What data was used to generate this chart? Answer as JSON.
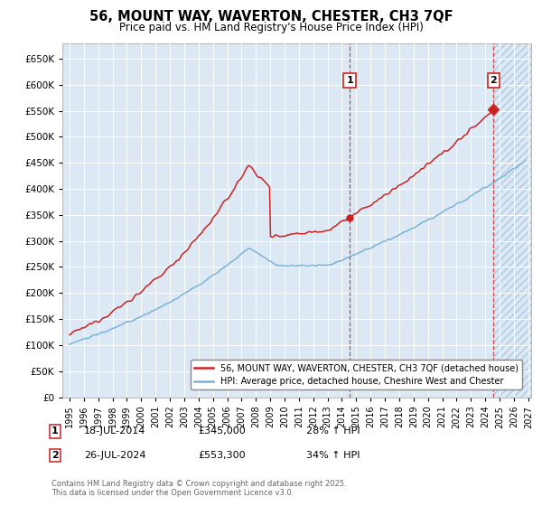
{
  "title": "56, MOUNT WAY, WAVERTON, CHESTER, CH3 7QF",
  "subtitle": "Price paid vs. HM Land Registry's House Price Index (HPI)",
  "legend_line1": "56, MOUNT WAY, WAVERTON, CHESTER, CH3 7QF (detached house)",
  "legend_line2": "HPI: Average price, detached house, Cheshire West and Chester",
  "annotation1_date": "18-JUL-2014",
  "annotation1_price": "£345,000",
  "annotation1_hpi": "28% ↑ HPI",
  "annotation2_date": "26-JUL-2024",
  "annotation2_price": "£553,300",
  "annotation2_hpi": "34% ↑ HPI",
  "sale1_x": 2014.54,
  "sale1_y": 345000,
  "sale2_x": 2024.57,
  "sale2_y": 553300,
  "ylim": [
    0,
    680000
  ],
  "xlim": [
    1994.5,
    2027.2
  ],
  "copyright": "Contains HM Land Registry data © Crown copyright and database right 2025.\nThis data is licensed under the Open Government Licence v3.0.",
  "hpi_color": "#7ab3d8",
  "price_color": "#cc2222",
  "bg_color": "#dce9f5",
  "hatch_color": "#c0d0e0"
}
